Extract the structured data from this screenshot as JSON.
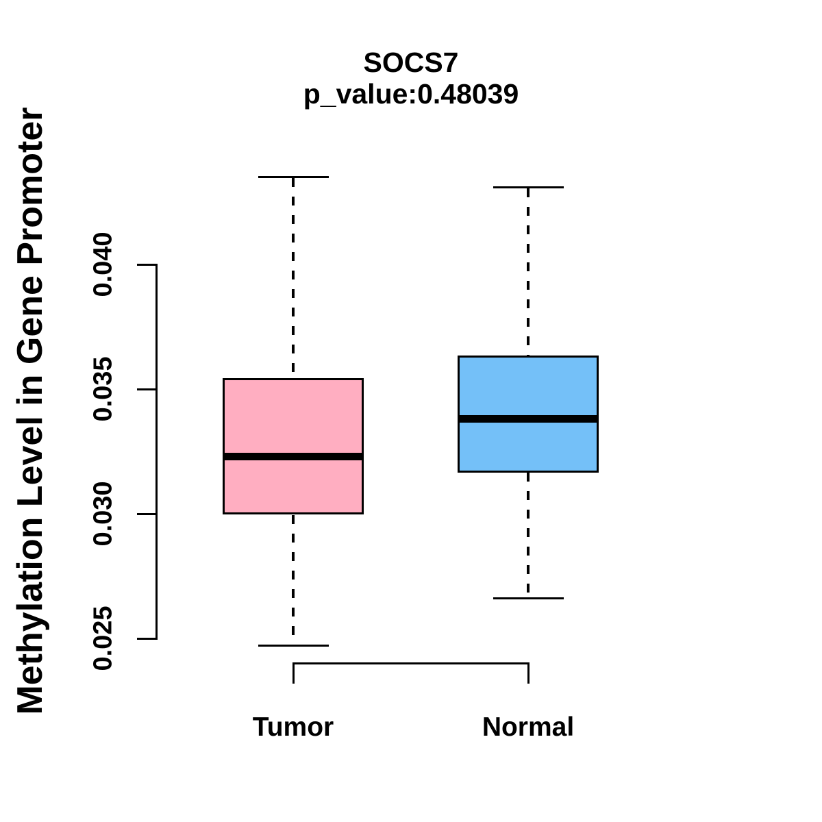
{
  "chart_data": {
    "type": "boxplot",
    "title": "SOCS7",
    "subtitle": "p_value:0.48039",
    "p_value": "0.48039",
    "gene": "SOCS7",
    "ylabel": "Methylation Level in Gene Promoter",
    "xlabel": "",
    "categories": [
      "Tumor",
      "Normal"
    ],
    "y_axis": {
      "tick_labels": [
        "0.025",
        "0.030",
        "0.035",
        "0.040"
      ],
      "tick_values": [
        0.025,
        0.03,
        0.035,
        0.04
      ],
      "range": [
        0.025,
        0.04
      ]
    },
    "grid": "off",
    "legend": "none",
    "series": [
      {
        "name": "Tumor",
        "color": "#FFAEC1",
        "whisker_low": 0.0247,
        "q1": 0.03,
        "median": 0.0323,
        "q3": 0.0354,
        "whisker_high": 0.0435
      },
      {
        "name": "Normal",
        "color": "#74C0F8",
        "whisker_low": 0.0266,
        "q1": 0.0317,
        "median": 0.0338,
        "q3": 0.0363,
        "whisker_high": 0.0431
      }
    ]
  },
  "colors": {
    "tumor_box": "#FFAEC1",
    "normal_box": "#74C0F8",
    "line": "#000000",
    "background": "#FFFFFF"
  }
}
